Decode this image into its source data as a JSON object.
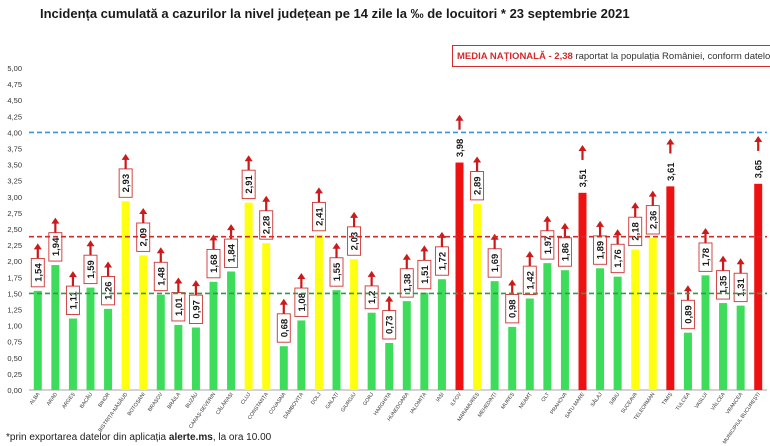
{
  "title": "Incidența cumulată a cazurilor la nivel județean pe 14 zile la ‰ de locuitori * 23 septembrie 2021",
  "national_avg": {
    "label": "MEDIA NAȚIONALĂ",
    "dash": "-",
    "value": "2,38",
    "text": "raportat la populația României, conform datelor INS"
  },
  "footnote": {
    "prefix": "*prin exportarea datelor din aplicația ",
    "bold": "alerte.ms",
    "suffix": ", la ora 10.00"
  },
  "colors": {
    "green": "#3ddc5a",
    "yellow": "#ffff10",
    "red": "#ee1111",
    "arrow": "#cc1a1a",
    "blue_line": "#3399dd",
    "red_line": "#d42a2a",
    "green_line": "#2e9e40"
  },
  "chart_data": {
    "type": "bar",
    "title": "Incidența cumulată a cazurilor la nivel județean pe 14 zile la ‰ de locuitori * 23 septembrie 2021",
    "ylim": [
      0,
      5
    ],
    "yticks": [
      "0,00",
      "0,25",
      "0,50",
      "0,75",
      "1,00",
      "1,25",
      "1,50",
      "1,75",
      "2,00",
      "2,25",
      "2,50",
      "2,75",
      "3,00",
      "3,25",
      "3,50",
      "3,75",
      "4,00",
      "4,25",
      "4,50",
      "4,75",
      "5,00"
    ],
    "reference_lines": [
      {
        "value": 4.0,
        "color": "blue"
      },
      {
        "value": 2.38,
        "color": "red"
      },
      {
        "value": 1.5,
        "color": "green"
      }
    ],
    "categories": [
      "ALBA",
      "ARAD",
      "ARGEȘ",
      "BACĂU",
      "BIHOR",
      "BISTRIȚA-NĂSĂUD",
      "BOTOȘANI",
      "BRAȘOV",
      "BRĂILA",
      "BUZĂU",
      "CARAȘ-SEVERIN",
      "CĂLĂRAȘI",
      "CLUJ",
      "CONSTANȚA",
      "COVASNA",
      "DÂMBOVIȚA",
      "DOLJ",
      "GALAȚI",
      "GIURGIU",
      "GORJ",
      "HARGHITA",
      "HUNEDOARA",
      "IALOMIȚA",
      "IAȘI",
      "ILFOV",
      "MARAMUREȘ",
      "MEHEDINȚI",
      "MUREȘ",
      "NEAMȚ",
      "OLT",
      "PRAHOVA",
      "SATU MARE",
      "SĂLAJ",
      "SIBIU",
      "SUCEAVA",
      "TELEORMAN",
      "TIMIȘ",
      "TULCEA",
      "VASLUI",
      "VÂLCEA",
      "VRANCEA",
      "MUNICIPIUL BUCUREȘTI"
    ],
    "values": [
      1.54,
      1.94,
      1.11,
      1.59,
      1.26,
      2.93,
      2.09,
      1.48,
      1.01,
      0.97,
      1.68,
      1.84,
      2.91,
      2.28,
      0.68,
      1.08,
      2.41,
      1.55,
      2.03,
      1.2,
      0.73,
      1.38,
      1.51,
      1.72,
      3.98,
      2.89,
      1.69,
      0.98,
      1.42,
      1.97,
      1.86,
      3.51,
      1.89,
      1.76,
      2.18,
      2.36,
      3.61,
      0.89,
      1.78,
      1.35,
      1.31,
      3.65
    ],
    "labels": [
      "1,54",
      "1,94",
      "1,11",
      "1,59",
      "1,26",
      "2,93",
      "2,09",
      "1,48",
      "1,01",
      "0,97",
      "1,68",
      "1,84",
      "2,91",
      "2,28",
      "0,68",
      "1,08",
      "2,41",
      "1,55",
      "2,03",
      "1,2",
      "0,73",
      "1,38",
      "1,51",
      "1,72",
      "3,98",
      "2,89",
      "1,69",
      "0,98",
      "1,42",
      "1,97",
      "1,86",
      "3,51",
      "1,89",
      "1,76",
      "2,18",
      "2,36",
      "3,61",
      "0,89",
      "1,78",
      "1,35",
      "1,31",
      "3,65"
    ],
    "bar_colors": [
      "green",
      "green",
      "green",
      "green",
      "green",
      "yellow",
      "yellow",
      "green",
      "green",
      "green",
      "green",
      "green",
      "yellow",
      "yellow",
      "green",
      "green",
      "yellow",
      "green",
      "yellow",
      "green",
      "green",
      "green",
      "green",
      "green",
      "red",
      "yellow",
      "green",
      "green",
      "green",
      "green",
      "green",
      "red",
      "green",
      "green",
      "yellow",
      "yellow",
      "red",
      "green",
      "green",
      "green",
      "green",
      "red"
    ],
    "trend": "up"
  }
}
